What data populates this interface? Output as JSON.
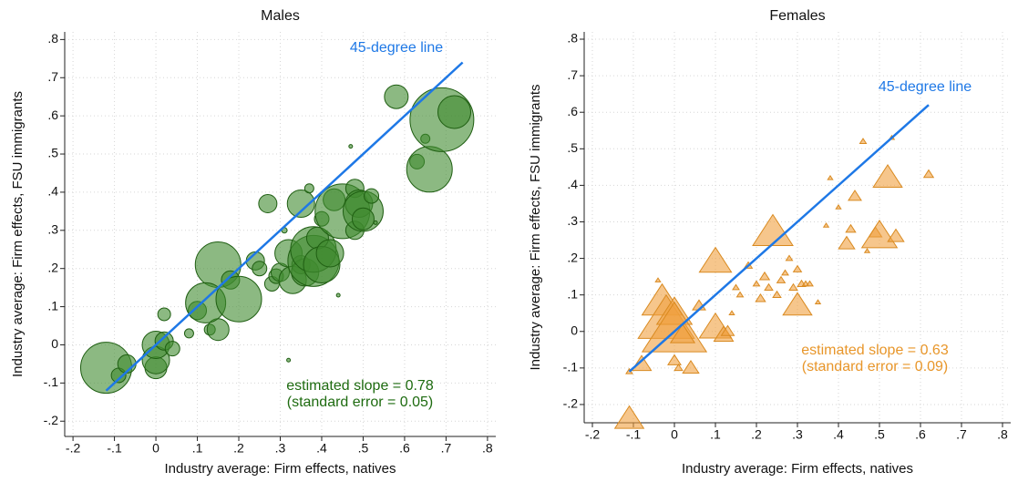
{
  "chart_data": [
    {
      "type": "scatter",
      "title": "Males",
      "marker": "circle",
      "x_label": "Industry average: Firm effects, natives",
      "y_label": "Industry average: Firm effects, FSU immigrants",
      "xlim": [
        -0.22,
        0.82
      ],
      "ylim": [
        -0.24,
        0.82
      ],
      "xticks": [
        {
          "value": -0.2,
          "label": "-.2"
        },
        {
          "value": -0.1,
          "label": "-.1"
        },
        0,
        {
          "value": 0.1,
          "label": ".1"
        },
        {
          "value": 0.2,
          "label": ".2"
        },
        {
          "value": 0.3,
          "label": ".3"
        },
        {
          "value": 0.4,
          "label": ".4"
        },
        {
          "value": 0.5,
          "label": ".5"
        },
        {
          "value": 0.6,
          "label": ".6"
        },
        {
          "value": 0.7,
          "label": ".7"
        },
        {
          "value": 0.8,
          "label": ".8"
        }
      ],
      "yticks": [
        {
          "value": -0.2,
          "label": "-.2"
        },
        {
          "value": -0.1,
          "label": "-.1"
        },
        0,
        {
          "value": 0.1,
          "label": ".1"
        },
        {
          "value": 0.2,
          "label": ".2"
        },
        {
          "value": 0.3,
          "label": ".3"
        },
        {
          "value": 0.4,
          "label": ".4"
        },
        {
          "value": 0.5,
          "label": ".5"
        },
        {
          "value": 0.6,
          "label": ".6"
        },
        {
          "value": 0.7,
          "label": ".7"
        },
        {
          "value": 0.8,
          "label": ".8"
        }
      ],
      "grid": true,
      "color": "#3f8a2e",
      "edge_color": "#1f5e12",
      "x": [
        -0.12,
        -0.09,
        -0.07,
        0.0,
        0.0,
        0.0,
        0.02,
        0.02,
        0.04,
        0.08,
        0.1,
        0.13,
        0.15,
        0.15,
        0.12,
        0.18,
        0.2,
        0.24,
        0.25,
        0.27,
        0.28,
        0.29,
        0.3,
        0.31,
        0.32,
        0.33,
        0.35,
        0.35,
        0.36,
        0.37,
        0.38,
        0.38,
        0.39,
        0.4,
        0.4,
        0.42,
        0.43,
        0.44,
        0.45,
        0.47,
        0.48,
        0.48,
        0.49,
        0.5,
        0.5,
        0.52,
        0.53,
        0.58,
        0.63,
        0.65,
        0.66,
        0.69,
        0.72,
        0.32
      ],
      "values": [
        -0.06,
        -0.08,
        -0.05,
        -0.06,
        -0.04,
        0.0,
        0.01,
        0.08,
        -0.01,
        0.03,
        0.09,
        0.04,
        0.04,
        0.21,
        0.11,
        0.17,
        0.12,
        0.22,
        0.2,
        0.37,
        0.16,
        0.18,
        0.19,
        0.3,
        0.24,
        0.17,
        0.21,
        0.37,
        0.19,
        0.41,
        0.22,
        0.25,
        0.28,
        0.33,
        0.21,
        0.24,
        0.38,
        0.13,
        0.35,
        0.52,
        0.41,
        0.3,
        0.37,
        0.35,
        0.33,
        0.39,
        0.32,
        0.65,
        0.48,
        0.54,
        0.46,
        0.59,
        0.61,
        -0.04
      ],
      "sizes": [
        28,
        8,
        10,
        12,
        15,
        15,
        10,
        7,
        8,
        5,
        10,
        6,
        12,
        25,
        22,
        10,
        25,
        10,
        8,
        10,
        8,
        8,
        10,
        3,
        15,
        15,
        10,
        15,
        15,
        5,
        28,
        25,
        12,
        8,
        20,
        15,
        12,
        2,
        30,
        2,
        10,
        10,
        15,
        22,
        12,
        8,
        2,
        13,
        8,
        5,
        25,
        35,
        18,
        2
      ],
      "reference_line": {
        "label": "45-degree line",
        "color": "#1e78e6",
        "x": [
          -0.12,
          0.74
        ]
      },
      "annotation": {
        "lines": [
          "estimated slope = 0.78",
          "(standard error = 0.05)"
        ],
        "color": "#1e6b10"
      }
    },
    {
      "type": "scatter",
      "title": "Females",
      "marker": "triangle",
      "x_label": "Industry average: Firm effects, natives",
      "y_label": "Industry average: Firm effects, FSU immigrants",
      "xlim": [
        -0.22,
        0.82
      ],
      "ylim": [
        -0.25,
        0.82
      ],
      "xticks": [
        {
          "value": -0.2,
          "label": "-.2"
        },
        {
          "value": -0.1,
          "label": "-.1"
        },
        0,
        {
          "value": 0.1,
          "label": ".1"
        },
        {
          "value": 0.2,
          "label": ".2"
        },
        {
          "value": 0.3,
          "label": ".3"
        },
        {
          "value": 0.4,
          "label": ".4"
        },
        {
          "value": 0.5,
          "label": ".5"
        },
        {
          "value": 0.6,
          "label": ".6"
        },
        {
          "value": 0.7,
          "label": ".7"
        },
        {
          "value": 0.8,
          "label": ".8"
        }
      ],
      "yticks": [
        {
          "value": -0.2,
          "label": "-.2"
        },
        {
          "value": -0.1,
          "label": "-.1"
        },
        0,
        {
          "value": 0.1,
          "label": ".1"
        },
        {
          "value": 0.2,
          "label": ".2"
        },
        {
          "value": 0.3,
          "label": ".3"
        },
        {
          "value": 0.4,
          "label": ".4"
        },
        {
          "value": 0.5,
          "label": ".5"
        },
        {
          "value": 0.6,
          "label": ".6"
        },
        {
          "value": 0.7,
          "label": ".7"
        },
        {
          "value": 0.8,
          "label": ".8"
        }
      ],
      "grid": true,
      "color": "#f0a040",
      "edge_color": "#d98a20",
      "x": [
        -0.11,
        -0.08,
        -0.11,
        -0.04,
        -0.03,
        -0.02,
        0.0,
        0.0,
        0.02,
        0.0,
        0.01,
        0.04,
        0.06,
        0.1,
        0.1,
        0.12,
        0.13,
        0.18,
        0.2,
        0.21,
        0.22,
        0.23,
        0.24,
        0.25,
        0.26,
        0.27,
        0.28,
        0.29,
        0.3,
        0.3,
        0.31,
        0.32,
        0.33,
        0.35,
        0.37,
        0.38,
        0.4,
        0.42,
        0.43,
        0.44,
        0.46,
        0.47,
        0.49,
        0.5,
        0.52,
        0.53,
        0.54,
        0.62,
        0.14,
        0.16,
        0.15
      ],
      "values": [
        -0.11,
        -0.09,
        -0.24,
        0.14,
        0.08,
        0.03,
        0.05,
        0.0,
        -0.01,
        -0.08,
        -0.1,
        -0.1,
        0.07,
        0.19,
        0.01,
        -0.01,
        0.0,
        0.18,
        0.13,
        0.09,
        0.15,
        0.12,
        0.27,
        0.1,
        0.14,
        0.16,
        0.2,
        0.12,
        0.17,
        0.07,
        0.13,
        0.13,
        0.13,
        0.08,
        0.29,
        0.42,
        0.34,
        0.24,
        0.28,
        0.37,
        0.52,
        0.22,
        0.27,
        0.26,
        0.42,
        0.53,
        0.26,
        0.43,
        0.05,
        0.1,
        0.12
      ],
      "sizes": [
        4,
        12,
        18,
        1,
        25,
        35,
        22,
        40,
        15,
        8,
        5,
        10,
        8,
        20,
        20,
        12,
        8,
        5,
        4,
        6,
        6,
        5,
        25,
        5,
        5,
        4,
        4,
        5,
        5,
        18,
        5,
        4,
        4,
        2,
        3,
        3,
        3,
        10,
        6,
        8,
        4,
        3,
        8,
        22,
        18,
        1,
        10,
        6,
        3,
        4,
        4
      ],
      "reference_line": {
        "label": "45-degree line",
        "color": "#1e78e6",
        "x": [
          -0.11,
          0.62
        ]
      },
      "annotation": {
        "lines": [
          "estimated slope = 0.63",
          "(standard error = 0.09)"
        ],
        "color": "#e8962a"
      }
    }
  ]
}
